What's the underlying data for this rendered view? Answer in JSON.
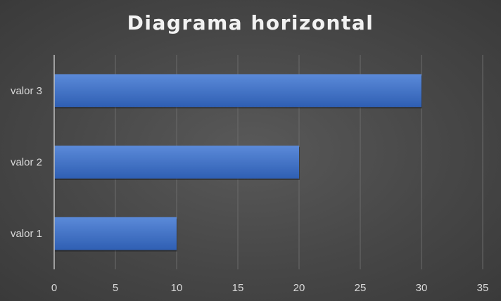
{
  "chart_data": {
    "type": "bar",
    "orientation": "horizontal",
    "title": "Diagrama horizontal",
    "categories": [
      "valor 1",
      "valor 2",
      "valor 3"
    ],
    "values": [
      10,
      20,
      30
    ],
    "xlim": [
      0,
      35
    ],
    "xticks": [
      0,
      5,
      10,
      15,
      20,
      25,
      30,
      35
    ],
    "xlabel": "",
    "ylabel": "",
    "grid": true,
    "legend": "none",
    "colors": {
      "bar": "#4472c4",
      "bar_light": "#5b8ad9",
      "bar_dark": "#2f5fb3",
      "background": "#474747",
      "grid": "#6b6b6b",
      "axis": "#bfbfbf",
      "text": "#d9d9d9"
    }
  }
}
